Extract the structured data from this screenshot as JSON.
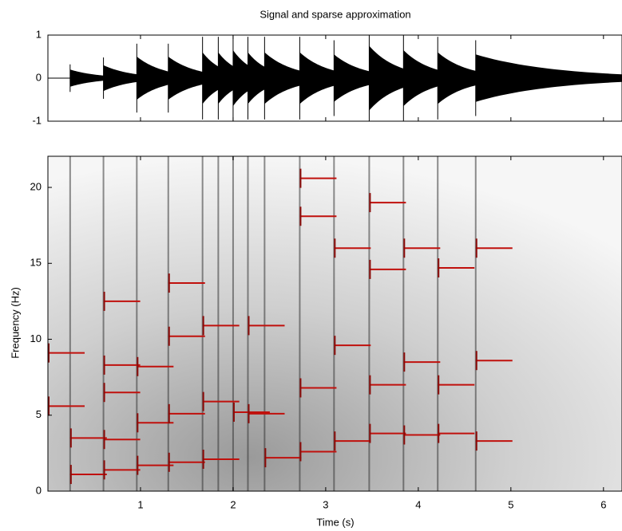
{
  "chart_data": [
    {
      "type": "waveform",
      "title": "Signal and sparse approximation",
      "x": [
        0.24,
        0.6,
        0.96,
        1.3,
        1.67,
        1.84,
        2.0,
        2.16,
        2.34,
        2.72,
        3.09,
        3.47,
        3.84,
        4.21,
        4.62
      ],
      "values": [
        0.2,
        0.3,
        0.5,
        0.5,
        0.6,
        0.6,
        0.65,
        0.6,
        0.6,
        0.6,
        0.55,
        0.75,
        0.65,
        0.6,
        0.55
      ],
      "color": "#000000",
      "xlim": [
        0,
        6.2
      ],
      "xticks": [
        1,
        2,
        3,
        4,
        5,
        6
      ],
      "ylim": [
        -1,
        1
      ],
      "yticks": [
        -1,
        0,
        1
      ]
    },
    {
      "type": "spectrogram",
      "xlabel": "Time (s)",
      "ylabel": "Frequency (Hz)",
      "x": [
        0.0,
        0.0,
        0.24,
        0.24,
        0.6,
        0.6,
        0.6,
        0.6,
        0.6,
        0.96,
        0.96,
        0.96,
        1.3,
        1.3,
        1.3,
        1.3,
        1.67,
        1.67,
        1.67,
        2.0,
        2.16,
        2.16,
        2.34,
        2.72,
        2.72,
        2.72,
        2.72,
        3.09,
        3.09,
        3.09,
        3.47,
        3.47,
        3.47,
        3.47,
        3.84,
        3.84,
        3.84,
        4.21,
        4.21,
        4.21,
        4.62,
        4.62,
        4.62
      ],
      "values": [
        5.6,
        9.1,
        1.1,
        3.5,
        12.5,
        8.3,
        6.5,
        3.4,
        1.4,
        8.2,
        4.5,
        1.7,
        13.7,
        10.2,
        5.1,
        1.9,
        10.9,
        5.9,
        2.1,
        5.2,
        10.9,
        5.1,
        2.2,
        20.6,
        18.1,
        6.8,
        2.6,
        16.0,
        9.6,
        3.3,
        19.0,
        14.6,
        7.0,
        3.8,
        16.0,
        8.5,
        3.7,
        14.7,
        7.0,
        3.8,
        16.0,
        8.6,
        3.3
      ],
      "color": "#c0100c",
      "xlim": [
        0,
        6.2
      ],
      "xticks": [
        1,
        2,
        3,
        4,
        5,
        6
      ],
      "ylim": [
        0,
        22.05
      ],
      "yticks": [
        0,
        5,
        10,
        15,
        20
      ]
    }
  ]
}
